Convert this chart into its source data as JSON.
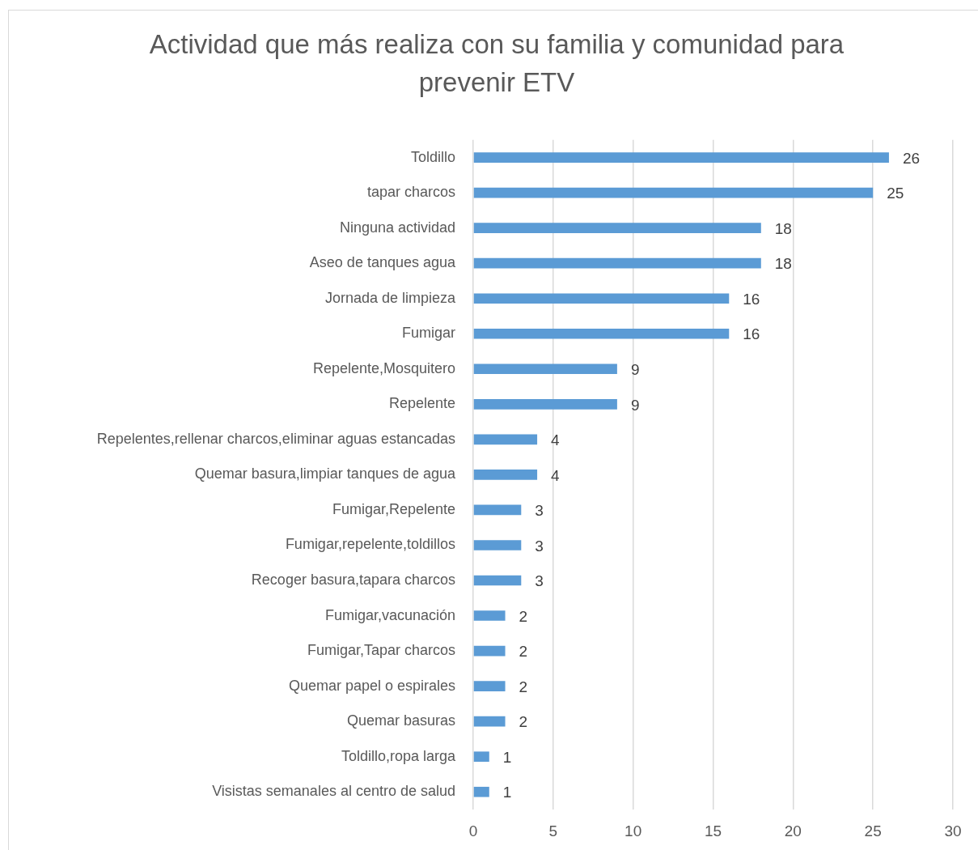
{
  "chart_data": {
    "type": "bar",
    "orientation": "horizontal",
    "title": "Actividad que más realiza con su familia y comunidad para prevenir ETV",
    "categories": [
      "Toldillo",
      "tapar charcos",
      "Ninguna actividad",
      "Aseo de tanques agua",
      "Jornada de limpieza",
      "Fumigar",
      "Repelente,Mosquitero",
      "Repelente",
      "Repelentes,rellenar charcos,eliminar aguas estancadas",
      "Quemar basura,limpiar tanques de agua",
      "Fumigar,Repelente",
      "Fumigar,repelente,toldillos",
      "Recoger basura,tapara charcos",
      "Fumigar,vacunación",
      "Fumigar,Tapar charcos",
      "Quemar papel o espirales",
      "Quemar basuras",
      "Toldillo,ropa larga",
      "Visistas semanales al centro de salud"
    ],
    "values": [
      26,
      25,
      18,
      18,
      16,
      16,
      9,
      9,
      4,
      4,
      3,
      3,
      3,
      2,
      2,
      2,
      2,
      1,
      1
    ],
    "color": "#5b9bd5",
    "xlim": [
      0,
      30
    ],
    "xticks": [
      0,
      5,
      10,
      15,
      20,
      25,
      30
    ],
    "grid": "x",
    "data_labels": true
  }
}
